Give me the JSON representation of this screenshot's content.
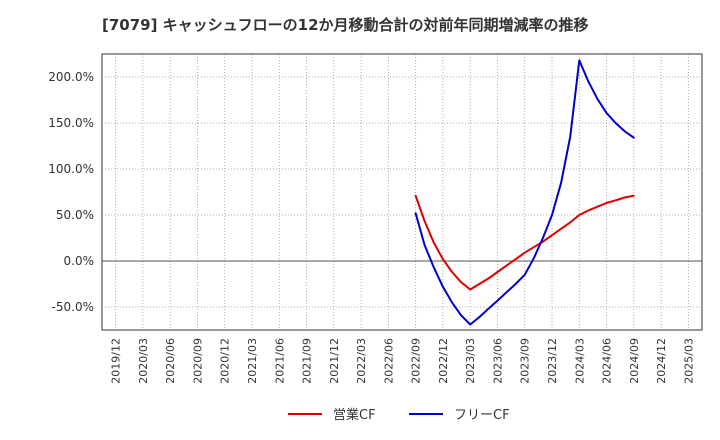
{
  "chart_data": {
    "type": "line",
    "title": "[7079]  キャッシュフローの12か月移動合計の対前年同期増減率の推移",
    "xlabel": "",
    "ylabel": "",
    "x_ticks": [
      "2019/12",
      "2020/03",
      "2020/06",
      "2020/09",
      "2020/12",
      "2021/03",
      "2021/06",
      "2021/09",
      "2021/12",
      "2022/03",
      "2022/06",
      "2022/09",
      "2022/12",
      "2023/03",
      "2023/06",
      "2023/09",
      "2023/12",
      "2024/03",
      "2024/06",
      "2024/09",
      "2024/12",
      "2025/03"
    ],
    "y_ticks": [
      {
        "value": 200,
        "label": "200.0%"
      },
      {
        "value": 150,
        "label": "150.0%"
      },
      {
        "value": 100,
        "label": "100.0%"
      },
      {
        "value": 50,
        "label": "50.0%"
      },
      {
        "value": 0,
        "label": "0.0%"
      },
      {
        "value": -50,
        "label": "-50.0%"
      }
    ],
    "ylim": [
      -75,
      225
    ],
    "grid": true,
    "legend_position": "bottom",
    "series": [
      {
        "name": "営業CF",
        "color": "#dd0000",
        "points": [
          {
            "x": 11,
            "y": 71
          },
          {
            "x": 11.333,
            "y": 43
          },
          {
            "x": 11.667,
            "y": 20
          },
          {
            "x": 12,
            "y": 2
          },
          {
            "x": 12.333,
            "y": -12
          },
          {
            "x": 12.667,
            "y": -23
          },
          {
            "x": 13,
            "y": -31
          },
          {
            "x": 13.333,
            "y": -25
          },
          {
            "x": 13.667,
            "y": -19
          },
          {
            "x": 14,
            "y": -12
          },
          {
            "x": 14.333,
            "y": -5
          },
          {
            "x": 14.667,
            "y": 2
          },
          {
            "x": 15,
            "y": 9
          },
          {
            "x": 15.333,
            "y": 15
          },
          {
            "x": 15.667,
            "y": 21
          },
          {
            "x": 16,
            "y": 28
          },
          {
            "x": 16.333,
            "y": 35
          },
          {
            "x": 16.667,
            "y": 42
          },
          {
            "x": 17,
            "y": 50
          },
          {
            "x": 17.333,
            "y": 55
          },
          {
            "x": 17.667,
            "y": 59
          },
          {
            "x": 18,
            "y": 63
          },
          {
            "x": 18.333,
            "y": 66
          },
          {
            "x": 18.667,
            "y": 69
          },
          {
            "x": 19,
            "y": 71
          }
        ]
      },
      {
        "name": "フリーCF",
        "color": "#0000cc",
        "points": [
          {
            "x": 11,
            "y": 52
          },
          {
            "x": 11.333,
            "y": 17
          },
          {
            "x": 11.667,
            "y": -7
          },
          {
            "x": 12,
            "y": -28
          },
          {
            "x": 12.333,
            "y": -45
          },
          {
            "x": 12.667,
            "y": -59
          },
          {
            "x": 13,
            "y": -69
          },
          {
            "x": 13.333,
            "y": -61
          },
          {
            "x": 13.667,
            "y": -52
          },
          {
            "x": 14,
            "y": -43
          },
          {
            "x": 14.333,
            "y": -34
          },
          {
            "x": 14.667,
            "y": -25
          },
          {
            "x": 15,
            "y": -15
          },
          {
            "x": 15.333,
            "y": 3
          },
          {
            "x": 15.667,
            "y": 25
          },
          {
            "x": 16,
            "y": 50
          },
          {
            "x": 16.333,
            "y": 85
          },
          {
            "x": 16.667,
            "y": 135
          },
          {
            "x": 17,
            "y": 218
          },
          {
            "x": 17.333,
            "y": 195
          },
          {
            "x": 17.667,
            "y": 176
          },
          {
            "x": 18,
            "y": 161
          },
          {
            "x": 18.333,
            "y": 150
          },
          {
            "x": 18.667,
            "y": 141
          },
          {
            "x": 19,
            "y": 134
          }
        ]
      }
    ]
  }
}
